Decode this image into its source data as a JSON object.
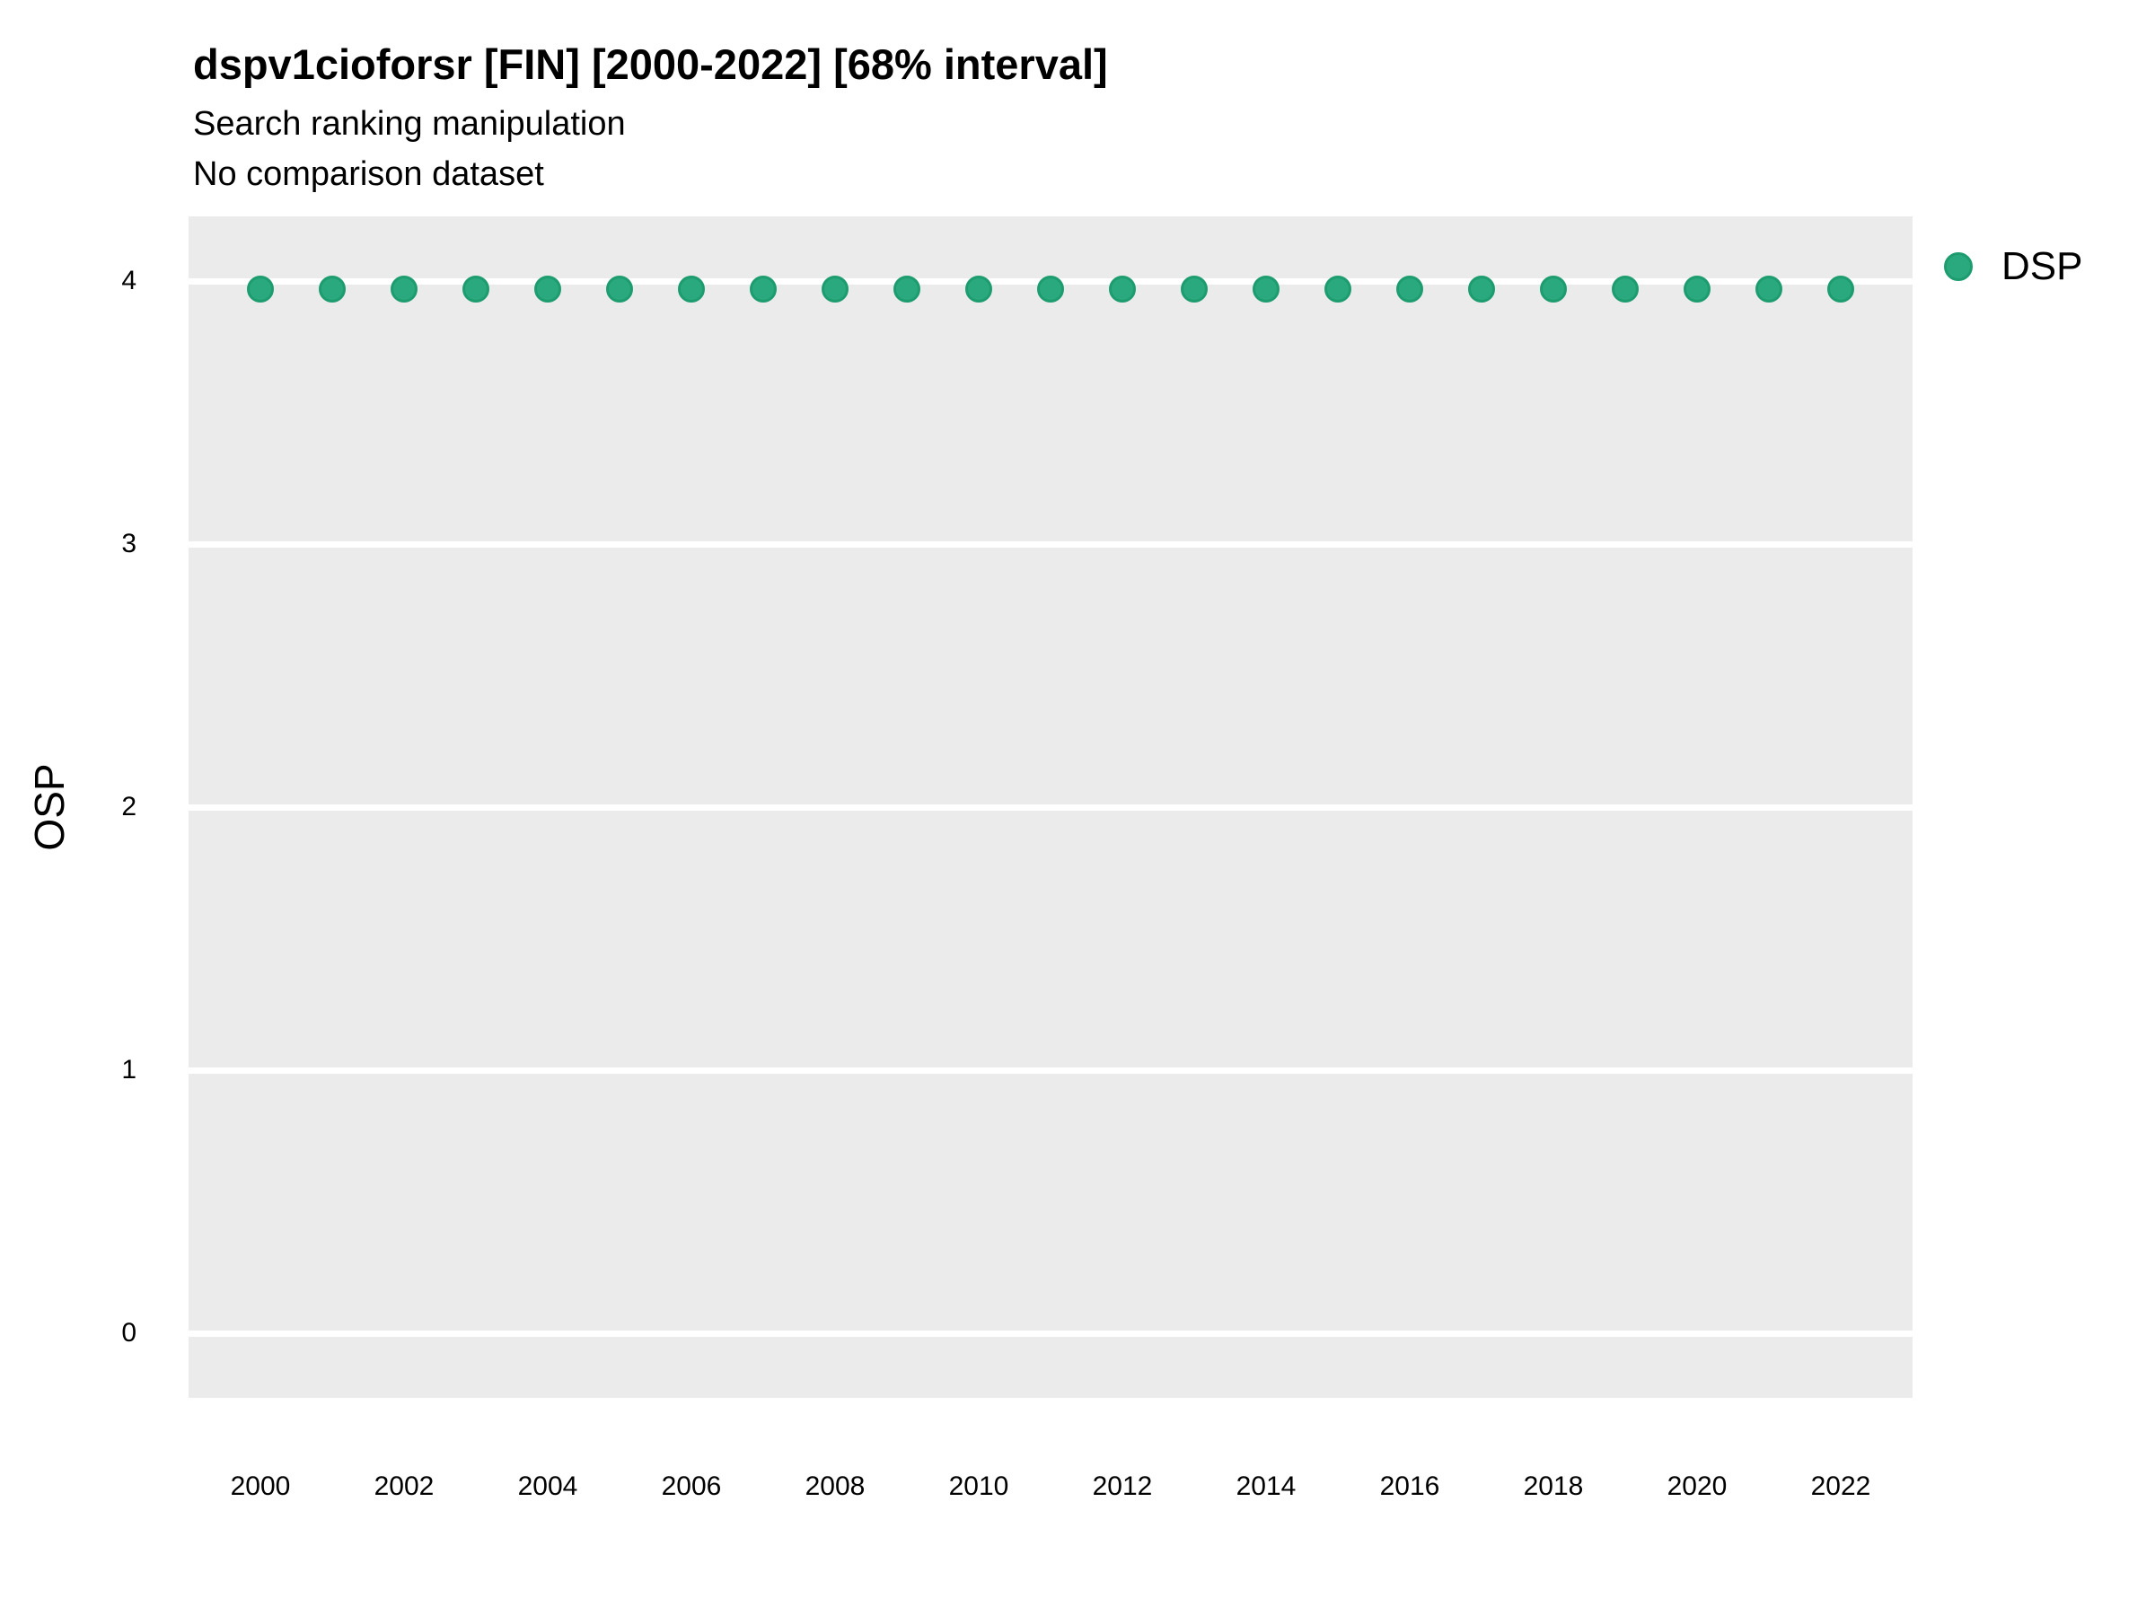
{
  "header": {
    "title": "dspv1cioforsr [FIN] [2000-2022] [68% interval]",
    "subtitle": "Search ranking manipulation",
    "note": "No comparison dataset"
  },
  "axes": {
    "y_label": "OSP",
    "y_ticks": [
      0,
      1,
      2,
      3,
      4
    ],
    "x_ticks": [
      2000,
      2002,
      2004,
      2006,
      2008,
      2010,
      2012,
      2014,
      2016,
      2018,
      2020,
      2022
    ]
  },
  "legend": {
    "position": "right-top",
    "items": [
      {
        "label": "DSP",
        "marker": "circle",
        "color": "#2BA97E"
      }
    ]
  },
  "colors": {
    "panel": "#EBEBEB",
    "gridline": "#FFFFFF",
    "point_fill": "#2BA97E",
    "point_border": "#1D9C6F",
    "text": "#000000"
  },
  "chart_data": {
    "type": "scatter",
    "title": "dspv1cioforsr [FIN] [2000-2022] [68% interval]",
    "subtitle": "Search ranking manipulation",
    "note": "No comparison dataset",
    "xlabel": "",
    "ylabel": "OSP",
    "x": [
      2000,
      2001,
      2002,
      2003,
      2004,
      2005,
      2006,
      2007,
      2008,
      2009,
      2010,
      2011,
      2012,
      2013,
      2014,
      2015,
      2016,
      2017,
      2018,
      2019,
      2020,
      2021,
      2022
    ],
    "series": [
      {
        "name": "DSP",
        "color": "#2BA97E",
        "values": [
          3.97,
          3.97,
          3.97,
          3.97,
          3.97,
          3.97,
          3.97,
          3.97,
          3.97,
          3.97,
          3.97,
          3.97,
          3.97,
          3.97,
          3.97,
          3.97,
          3.97,
          3.97,
          3.97,
          3.97,
          3.97,
          3.97,
          3.97
        ]
      }
    ],
    "xlim": [
      1999,
      2023
    ],
    "ylim": [
      -0.25,
      4.25
    ],
    "yticks": [
      0,
      1,
      2,
      3,
      4
    ],
    "xticks": [
      2000,
      2002,
      2004,
      2006,
      2008,
      2010,
      2012,
      2014,
      2016,
      2018,
      2020,
      2022
    ],
    "grid": "horizontal major gridlines only (white on grey panel)",
    "legend_position": "right-top"
  }
}
